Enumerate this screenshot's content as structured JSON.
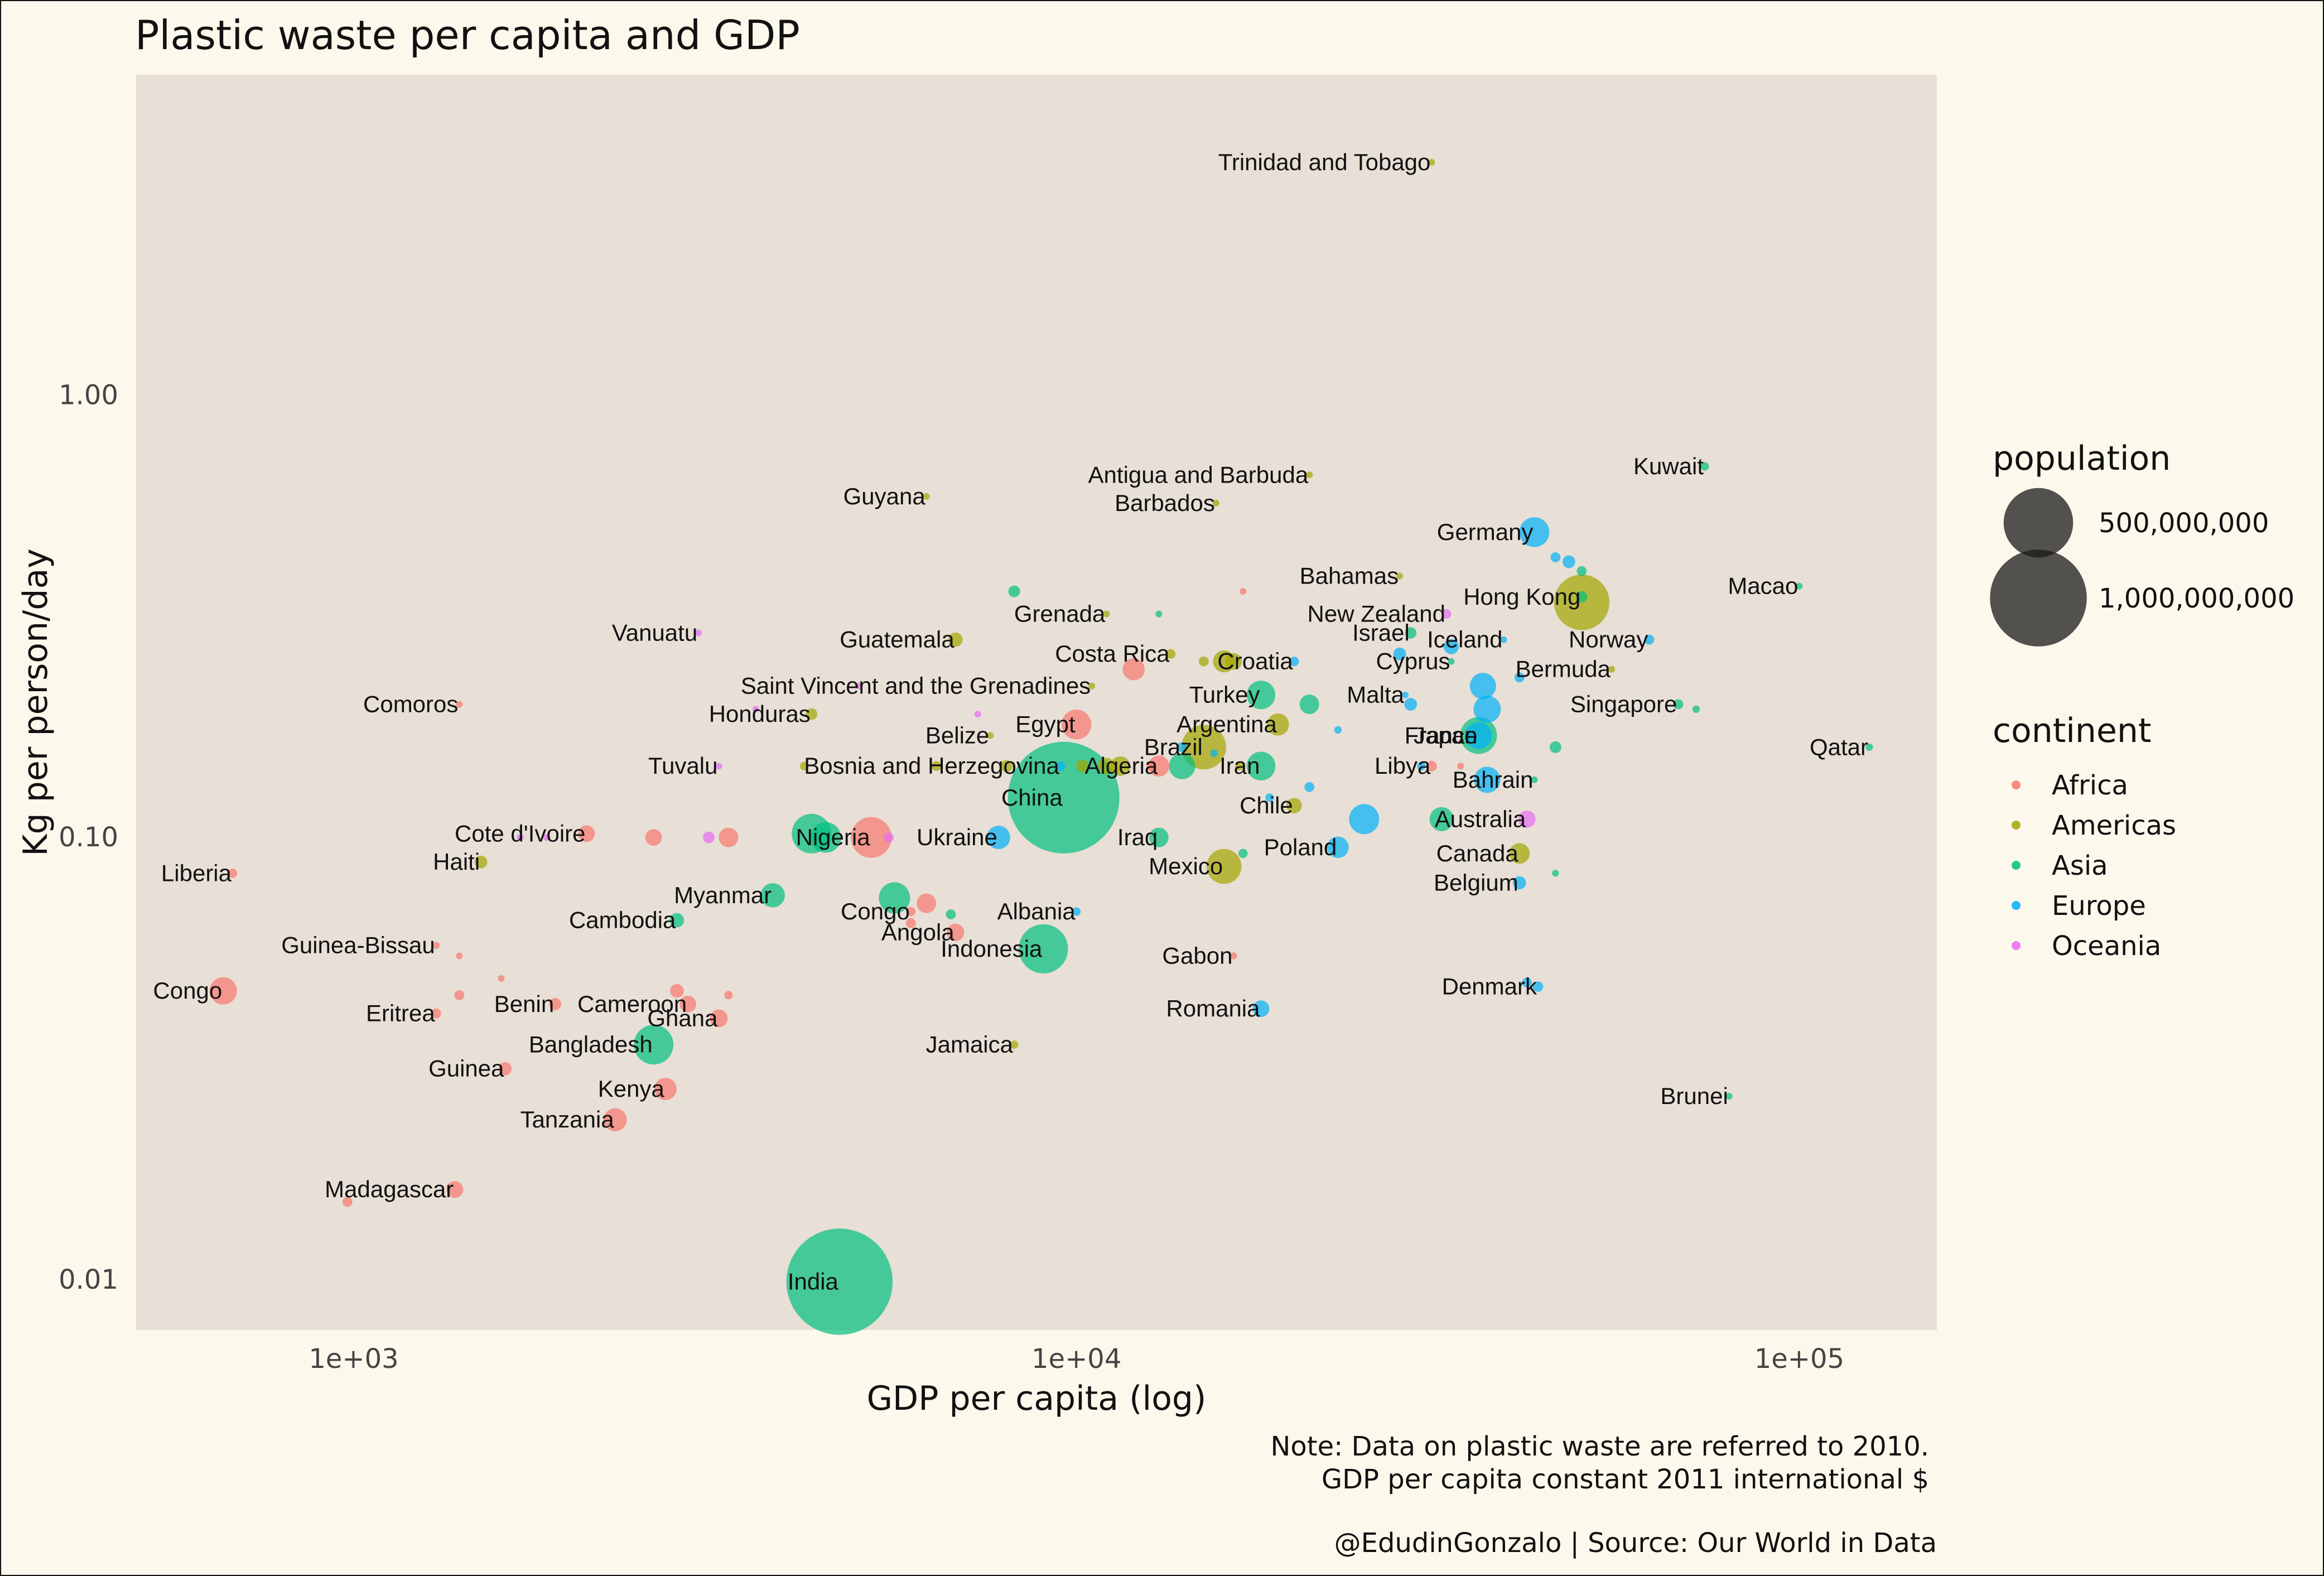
{
  "chart_data": {
    "type": "scatter",
    "title": "Plastic waste per capita and GDP",
    "xlabel": "GDP per capita (log)",
    "ylabel": "Kg per person/day",
    "x_scale": "log10",
    "y_scale": "log10",
    "xlim": [
      500,
      155000
    ],
    "ylim": [
      0.0077,
      5.3
    ],
    "x_ticks": [
      {
        "value": 1000,
        "label": "1e+03"
      },
      {
        "value": 10000,
        "label": "1e+04"
      },
      {
        "value": 100000,
        "label": "1e+05"
      }
    ],
    "y_ticks": [
      {
        "value": 0.01,
        "label": "0.01"
      },
      {
        "value": 0.1,
        "label": "0.10"
      },
      {
        "value": 1,
        "label": "1.00"
      }
    ],
    "legend_size": {
      "title": "population",
      "entries": [
        {
          "value": 500000000,
          "label": "500,000,000"
        },
        {
          "value": 1000000000,
          "label": "1,000,000,000"
        }
      ]
    },
    "legend_color": {
      "title": "continent",
      "entries": [
        {
          "name": "Africa",
          "color": "#F8766D"
        },
        {
          "name": "Americas",
          "color": "#A3A500"
        },
        {
          "name": "Asia",
          "color": "#00BF7D"
        },
        {
          "name": "Europe",
          "color": "#00B0F6"
        },
        {
          "name": "Oceania",
          "color": "#E76BF3"
        }
      ]
    },
    "caption": {
      "note1": "Note: Data on plastic waste are referred to 2010.",
      "note2": "GDP per capita constant 2011 international $",
      "source": "@EdudinGonzalo | Source: Our World in Data"
    },
    "points": [
      {
        "label": "Trinidad and Tobago",
        "continent": "Americas",
        "x": 31000,
        "y": 3.36,
        "pop": 1.3
      },
      {
        "label": "Kuwait",
        "continent": "Asia",
        "x": 74000,
        "y": 0.69,
        "pop": 2.9
      },
      {
        "label": "Antigua and Barbuda",
        "continent": "Americas",
        "x": 21000,
        "y": 0.66,
        "pop": 0.09
      },
      {
        "label": "Guyana",
        "continent": "Americas",
        "x": 6200,
        "y": 0.59,
        "pop": 0.75
      },
      {
        "label": "Barbados",
        "continent": "Americas",
        "x": 15600,
        "y": 0.57,
        "pop": 0.28
      },
      {
        "label": "Germany",
        "continent": "Europe",
        "x": 43000,
        "y": 0.49,
        "pop": 81
      },
      {
        "label": "",
        "continent": "Europe",
        "x": 46000,
        "y": 0.43,
        "pop": 5
      },
      {
        "label": "",
        "continent": "Europe",
        "x": 48000,
        "y": 0.42,
        "pop": 10
      },
      {
        "label": "",
        "continent": "Asia",
        "x": 50000,
        "y": 0.4,
        "pop": 5
      },
      {
        "label": "Bahamas",
        "continent": "Americas",
        "x": 28000,
        "y": 0.39,
        "pop": 0.37
      },
      {
        "label": "Hong Kong",
        "continent": "Asia",
        "x": 50000,
        "y": 0.35,
        "pop": 7
      },
      {
        "label": "",
        "continent": "Americas",
        "x": 50000,
        "y": 0.34,
        "pop": 310
      },
      {
        "label": "Macao",
        "continent": "Asia",
        "x": 100000,
        "y": 0.37,
        "pop": 0.6
      },
      {
        "label": "",
        "continent": "Asia",
        "x": 8200,
        "y": 0.36,
        "pop": 8
      },
      {
        "label": "",
        "continent": "Africa",
        "x": 17000,
        "y": 0.36,
        "pop": 1.3
      },
      {
        "label": "Grenada",
        "continent": "Americas",
        "x": 11000,
        "y": 0.32,
        "pop": 0.1
      },
      {
        "label": "",
        "continent": "Asia",
        "x": 13000,
        "y": 0.32,
        "pop": 0.4
      },
      {
        "label": "New Zealand",
        "continent": "Oceania",
        "x": 32500,
        "y": 0.32,
        "pop": 4.4
      },
      {
        "label": "Vanuatu",
        "continent": "Oceania",
        "x": 3000,
        "y": 0.29,
        "pop": 0.24
      },
      {
        "label": "Israel",
        "continent": "Asia",
        "x": 29000,
        "y": 0.29,
        "pop": 7.6
      },
      {
        "label": "Iceland",
        "continent": "Europe",
        "x": 39000,
        "y": 0.28,
        "pop": 0.32
      },
      {
        "label": "Norway",
        "continent": "Europe",
        "x": 62000,
        "y": 0.28,
        "pop": 4.9
      },
      {
        "label": "",
        "continent": "Europe",
        "x": 33000,
        "y": 0.27,
        "pop": 16
      },
      {
        "label": "",
        "continent": "Europe",
        "x": 28000,
        "y": 0.26,
        "pop": 10
      },
      {
        "label": "Guatemala",
        "continent": "Americas",
        "x": 6800,
        "y": 0.28,
        "pop": 14
      },
      {
        "label": "Costa Rica",
        "continent": "Americas",
        "x": 13500,
        "y": 0.26,
        "pop": 4.6
      },
      {
        "label": "",
        "continent": "Americas",
        "x": 15000,
        "y": 0.25,
        "pop": 5
      },
      {
        "label": "Croatia",
        "continent": "Europe",
        "x": 20000,
        "y": 0.25,
        "pop": 4.3
      },
      {
        "label": "",
        "continent": "Americas",
        "x": 16500,
        "y": 0.25,
        "pop": 20
      },
      {
        "label": "",
        "continent": "Americas",
        "x": 16000,
        "y": 0.25,
        "pop": 40
      },
      {
        "label": "Cyprus",
        "continent": "Asia",
        "x": 33000,
        "y": 0.25,
        "pop": 1.1
      },
      {
        "label": "Bermuda",
        "continent": "Americas",
        "x": 55000,
        "y": 0.24,
        "pop": 0.06
      },
      {
        "label": "",
        "continent": "Africa",
        "x": 12000,
        "y": 0.24,
        "pop": 40
      },
      {
        "label": "",
        "continent": "Europe",
        "x": 41000,
        "y": 0.23,
        "pop": 5
      },
      {
        "label": "Saint Vincent and the Grenadines",
        "continent": "Americas",
        "x": 10500,
        "y": 0.22,
        "pop": 0.11
      },
      {
        "label": "",
        "continent": "Oceania",
        "x": 5000,
        "y": 0.22,
        "pop": 0.3
      },
      {
        "label": "Comoros",
        "continent": "Africa",
        "x": 1400,
        "y": 0.2,
        "pop": 0.7
      },
      {
        "label": "Turkey",
        "continent": "Asia",
        "x": 18000,
        "y": 0.21,
        "pop": 73
      },
      {
        "label": "Malta",
        "continent": "Europe",
        "x": 28500,
        "y": 0.21,
        "pop": 0.41
      },
      {
        "label": "",
        "continent": "Europe",
        "x": 36500,
        "y": 0.22,
        "pop": 60
      },
      {
        "label": "",
        "continent": "Asia",
        "x": 21000,
        "y": 0.2,
        "pop": 30
      },
      {
        "label": "",
        "continent": "Europe",
        "x": 29000,
        "y": 0.2,
        "pop": 10
      },
      {
        "label": "",
        "continent": "Europe",
        "x": 37000,
        "y": 0.195,
        "pop": 65
      },
      {
        "label": "Singapore",
        "continent": "Asia",
        "x": 68000,
        "y": 0.2,
        "pop": 5.1
      },
      {
        "label": "",
        "continent": "Asia",
        "x": 72000,
        "y": 0.195,
        "pop": 2
      },
      {
        "label": "Honduras",
        "continent": "Americas",
        "x": 4300,
        "y": 0.19,
        "pop": 7.8
      },
      {
        "label": "",
        "continent": "Oceania",
        "x": 3600,
        "y": 0.195,
        "pop": 0.1
      },
      {
        "label": "",
        "continent": "Oceania",
        "x": 7300,
        "y": 0.19,
        "pop": 0.3
      },
      {
        "label": "Egypt",
        "continent": "Africa",
        "x": 10000,
        "y": 0.18,
        "pop": 80
      },
      {
        "label": "Argentina",
        "continent": "Americas",
        "x": 19000,
        "y": 0.18,
        "pop": 40
      },
      {
        "label": "",
        "continent": "Europe",
        "x": 23000,
        "y": 0.175,
        "pop": 2
      },
      {
        "label": "France",
        "continent": "Europe",
        "x": 36000,
        "y": 0.17,
        "pop": 63
      },
      {
        "label": "Qatar",
        "continent": "Asia",
        "x": 125000,
        "y": 0.16,
        "pop": 1.8
      },
      {
        "label": "Belize",
        "continent": "Americas",
        "x": 7600,
        "y": 0.17,
        "pop": 0.31
      },
      {
        "label": "Brazil",
        "continent": "Americas",
        "x": 15000,
        "y": 0.16,
        "pop": 195
      },
      {
        "label": "Japan",
        "continent": "Asia",
        "x": 36000,
        "y": 0.17,
        "pop": 128
      },
      {
        "label": "",
        "continent": "Asia",
        "x": 46000,
        "y": 0.16,
        "pop": 8
      },
      {
        "label": "",
        "continent": "Europe",
        "x": 14000,
        "y": 0.16,
        "pop": 5
      },
      {
        "label": "",
        "continent": "Europe",
        "x": 15500,
        "y": 0.155,
        "pop": 2
      },
      {
        "label": "Bosnia and Herzegovina",
        "continent": "Europe",
        "x": 9500,
        "y": 0.145,
        "pop": 3.8
      },
      {
        "label": "Algeria",
        "continent": "Africa",
        "x": 13000,
        "y": 0.145,
        "pop": 36
      },
      {
        "label": "Iran",
        "continent": "Asia",
        "x": 18000,
        "y": 0.145,
        "pop": 74
      },
      {
        "label": "",
        "continent": "Americas",
        "x": 8000,
        "y": 0.145,
        "pop": 9
      },
      {
        "label": "",
        "continent": "Americas",
        "x": 10200,
        "y": 0.145,
        "pop": 10
      },
      {
        "label": "",
        "continent": "Americas",
        "x": 11000,
        "y": 0.145,
        "pop": 20
      },
      {
        "label": "",
        "continent": "Americas",
        "x": 11500,
        "y": 0.145,
        "pop": 30
      },
      {
        "label": "",
        "continent": "Asia",
        "x": 14000,
        "y": 0.145,
        "pop": 60
      },
      {
        "label": "",
        "continent": "Americas",
        "x": 6400,
        "y": 0.145,
        "pop": 5
      },
      {
        "label": "",
        "continent": "Americas",
        "x": 4200,
        "y": 0.145,
        "pop": 3
      },
      {
        "label": "",
        "continent": "Africa",
        "x": 12700,
        "y": 0.145,
        "pop": 5
      },
      {
        "label": "",
        "continent": "Americas",
        "x": 16800,
        "y": 0.145,
        "pop": 3
      },
      {
        "label": "Libya",
        "continent": "Africa",
        "x": 31000,
        "y": 0.145,
        "pop": 6
      },
      {
        "label": "",
        "continent": "Europe",
        "x": 30000,
        "y": 0.145,
        "pop": 3
      },
      {
        "label": "",
        "continent": "Africa",
        "x": 34000,
        "y": 0.145,
        "pop": 1
      },
      {
        "label": "Tuvalu",
        "continent": "Oceania",
        "x": 3200,
        "y": 0.145,
        "pop": 0.01
      },
      {
        "label": "Bahrain",
        "continent": "Asia",
        "x": 43000,
        "y": 0.135,
        "pop": 1.2
      },
      {
        "label": "",
        "continent": "Europe",
        "x": 37000,
        "y": 0.135,
        "pop": 60
      },
      {
        "label": "",
        "continent": "Europe",
        "x": 21000,
        "y": 0.13,
        "pop": 5
      },
      {
        "label": "China",
        "continent": "Asia",
        "x": 9600,
        "y": 0.123,
        "pop": 1340
      },
      {
        "label": "Chile",
        "continent": "Americas",
        "x": 20000,
        "y": 0.118,
        "pop": 17
      },
      {
        "label": "",
        "continent": "Europe",
        "x": 18500,
        "y": 0.123,
        "pop": 3
      },
      {
        "label": "",
        "continent": "Europe",
        "x": 25000,
        "y": 0.11,
        "pop": 82
      },
      {
        "label": "Australia",
        "continent": "Oceania",
        "x": 42000,
        "y": 0.11,
        "pop": 22
      },
      {
        "label": "",
        "continent": "Asia",
        "x": 32000,
        "y": 0.11,
        "pop": 49
      },
      {
        "label": "Cote d'Ivoire",
        "continent": "Africa",
        "x": 2100,
        "y": 0.102,
        "pop": 20
      },
      {
        "label": "",
        "continent": "Oceania",
        "x": 1700,
        "y": 0.1,
        "pop": 0.5
      },
      {
        "label": "",
        "continent": "Oceania",
        "x": 1850,
        "y": 0.1,
        "pop": 1
      },
      {
        "label": "",
        "continent": "Africa",
        "x": 2600,
        "y": 0.1,
        "pop": 20
      },
      {
        "label": "",
        "continent": "Oceania",
        "x": 3100,
        "y": 0.1,
        "pop": 8
      },
      {
        "label": "",
        "continent": "Africa",
        "x": 3300,
        "y": 0.1,
        "pop": 30
      },
      {
        "label": "Nigeria",
        "continent": "Africa",
        "x": 5200,
        "y": 0.1,
        "pop": 160
      },
      {
        "label": "",
        "continent": "Asia",
        "x": 4300,
        "y": 0.102,
        "pop": 150
      },
      {
        "label": "",
        "continent": "Asia",
        "x": 4500,
        "y": 0.1,
        "pop": 85
      },
      {
        "label": "",
        "continent": "Oceania",
        "x": 5500,
        "y": 0.1,
        "pop": 5
      },
      {
        "label": "Ukraine",
        "continent": "Europe",
        "x": 7800,
        "y": 0.1,
        "pop": 46
      },
      {
        "label": "Iraq",
        "continent": "Asia",
        "x": 13000,
        "y": 0.1,
        "pop": 30
      },
      {
        "label": "Poland",
        "continent": "Europe",
        "x": 23000,
        "y": 0.095,
        "pop": 38
      },
      {
        "label": "",
        "continent": "Asia",
        "x": 17000,
        "y": 0.092,
        "pop": 4
      },
      {
        "label": "Canada",
        "continent": "Americas",
        "x": 41000,
        "y": 0.092,
        "pop": 34
      },
      {
        "label": "Haiti",
        "continent": "Americas",
        "x": 1500,
        "y": 0.088,
        "pop": 10
      },
      {
        "label": "Mexico",
        "continent": "Americas",
        "x": 16000,
        "y": 0.086,
        "pop": 114
      },
      {
        "label": "Liberia",
        "continent": "Africa",
        "x": 680,
        "y": 0.083,
        "pop": 4
      },
      {
        "label": "",
        "continent": "Asia",
        "x": 46000,
        "y": 0.083,
        "pop": 1.5
      },
      {
        "label": "Belgium",
        "continent": "Europe",
        "x": 41000,
        "y": 0.079,
        "pop": 11
      },
      {
        "label": "Myanmar",
        "continent": "Asia",
        "x": 3800,
        "y": 0.074,
        "pop": 50
      },
      {
        "label": "",
        "continent": "Asia",
        "x": 5600,
        "y": 0.073,
        "pop": 90
      },
      {
        "label": "",
        "continent": "Africa",
        "x": 6200,
        "y": 0.071,
        "pop": 30
      },
      {
        "label": "Albania",
        "continent": "Europe",
        "x": 10000,
        "y": 0.068,
        "pop": 2.9
      },
      {
        "label": "Congo",
        "continent": "Africa",
        "x": 5900,
        "y": 0.068,
        "pop": 4
      },
      {
        "label": "",
        "continent": "Asia",
        "x": 6700,
        "y": 0.067,
        "pop": 5
      },
      {
        "label": "Cambodia",
        "continent": "Asia",
        "x": 2800,
        "y": 0.065,
        "pop": 14
      },
      {
        "label": "Angola",
        "continent": "Africa",
        "x": 6800,
        "y": 0.061,
        "pop": 23
      },
      {
        "label": "",
        "continent": "Africa",
        "x": 5900,
        "y": 0.064,
        "pop": 5
      },
      {
        "label": "Guinea-Bissau",
        "continent": "Africa",
        "x": 1300,
        "y": 0.057,
        "pop": 1.6
      },
      {
        "label": "Indonesia",
        "continent": "Asia",
        "x": 9000,
        "y": 0.056,
        "pop": 240
      },
      {
        "label": "",
        "continent": "Africa",
        "x": 1400,
        "y": 0.054,
        "pop": 1
      },
      {
        "label": "Gabon",
        "continent": "Africa",
        "x": 16500,
        "y": 0.054,
        "pop": 1.5
      },
      {
        "label": "",
        "continent": "Africa",
        "x": 1600,
        "y": 0.048,
        "pop": 1
      },
      {
        "label": "",
        "continent": "Europe",
        "x": 42000,
        "y": 0.047,
        "pop": 5
      },
      {
        "label": "Denmark",
        "continent": "Europe",
        "x": 43500,
        "y": 0.046,
        "pop": 5.6
      },
      {
        "label": "Congo",
        "continent": "Africa",
        "x": 660,
        "y": 0.045,
        "pop": 66
      },
      {
        "label": "",
        "continent": "Africa",
        "x": 1400,
        "y": 0.044,
        "pop": 5
      },
      {
        "label": "",
        "continent": "Africa",
        "x": 2800,
        "y": 0.045,
        "pop": 12
      },
      {
        "label": "",
        "continent": "Africa",
        "x": 3300,
        "y": 0.044,
        "pop": 3
      },
      {
        "label": "Cameroon",
        "continent": "Africa",
        "x": 2900,
        "y": 0.042,
        "pop": 20
      },
      {
        "label": "Benin",
        "continent": "Africa",
        "x": 1900,
        "y": 0.042,
        "pop": 9
      },
      {
        "label": "Eritrea",
        "continent": "Africa",
        "x": 1300,
        "y": 0.04,
        "pop": 5
      },
      {
        "label": "Romania",
        "continent": "Europe",
        "x": 18000,
        "y": 0.041,
        "pop": 20
      },
      {
        "label": "Ghana",
        "continent": "Africa",
        "x": 3200,
        "y": 0.039,
        "pop": 24
      },
      {
        "label": "Bangladesh",
        "continent": "Asia",
        "x": 2600,
        "y": 0.034,
        "pop": 150
      },
      {
        "label": "Jamaica",
        "continent": "Americas",
        "x": 8200,
        "y": 0.034,
        "pop": 2.7
      },
      {
        "label": "Guinea",
        "continent": "Africa",
        "x": 1620,
        "y": 0.03,
        "pop": 11
      },
      {
        "label": "Kenya",
        "continent": "Africa",
        "x": 2700,
        "y": 0.027,
        "pop": 41
      },
      {
        "label": "Brunei",
        "continent": "Asia",
        "x": 80000,
        "y": 0.026,
        "pop": 0.4
      },
      {
        "label": "Tanzania",
        "continent": "Africa",
        "x": 2300,
        "y": 0.023,
        "pop": 45
      },
      {
        "label": "Madagascar",
        "continent": "Africa",
        "x": 1380,
        "y": 0.016,
        "pop": 21
      },
      {
        "label": "",
        "continent": "Africa",
        "x": 980,
        "y": 0.015,
        "pop": 5
      },
      {
        "label": "India",
        "continent": "Asia",
        "x": 4700,
        "y": 0.0099,
        "pop": 1210
      }
    ]
  }
}
